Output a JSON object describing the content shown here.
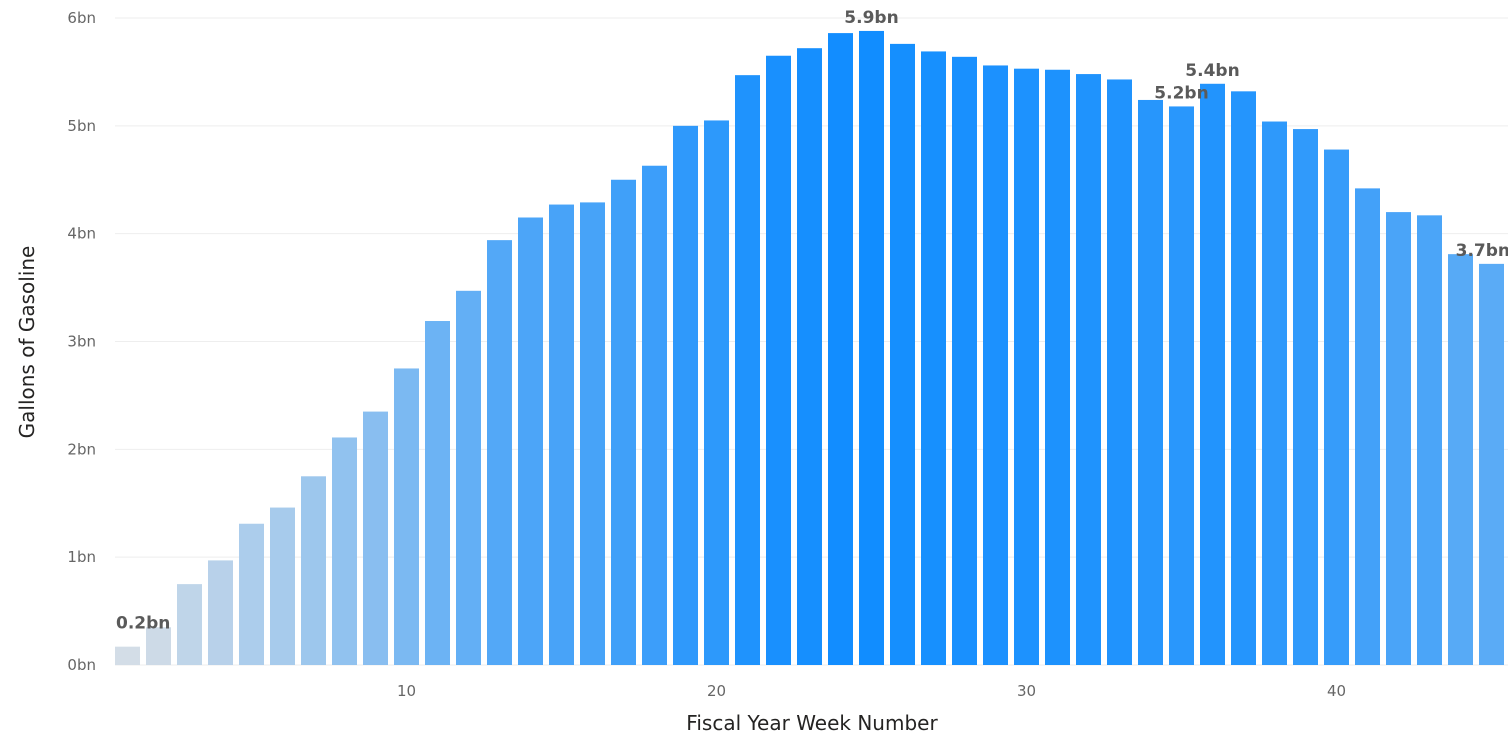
{
  "chart_data": {
    "type": "bar",
    "xlabel": "Fiscal Year Week Number",
    "ylabel": "Gallons of Gasoline",
    "x": [
      1,
      2,
      3,
      4,
      5,
      6,
      7,
      8,
      9,
      10,
      11,
      12,
      13,
      14,
      15,
      16,
      17,
      18,
      19,
      20,
      21,
      22,
      23,
      24,
      25,
      26,
      27,
      28,
      29,
      30,
      31,
      32,
      33,
      34,
      35,
      36,
      37,
      38,
      39,
      40,
      41,
      42,
      43,
      44,
      45
    ],
    "values": [
      0.17,
      0.35,
      0.75,
      0.97,
      1.31,
      1.46,
      1.75,
      2.11,
      2.35,
      2.75,
      3.19,
      3.47,
      3.94,
      4.15,
      4.27,
      4.29,
      4.5,
      4.63,
      5.0,
      5.05,
      5.47,
      5.65,
      5.72,
      5.86,
      5.88,
      5.76,
      5.69,
      5.64,
      5.56,
      5.53,
      5.52,
      5.48,
      5.43,
      5.24,
      5.18,
      5.39,
      5.32,
      5.04,
      4.97,
      4.78,
      4.42,
      4.2,
      4.17,
      3.81,
      3.72
    ],
    "x_ticks": [
      10,
      20,
      30,
      40
    ],
    "y_ticks": [
      "0bn",
      "1bn",
      "2bn",
      "3bn",
      "4bn",
      "5bn",
      "6bn"
    ],
    "ylim": [
      0,
      6
    ],
    "grid": true,
    "color_scale": {
      "low": "#d9dfe6",
      "high": "#118dff"
    },
    "data_labels": [
      {
        "x": 1,
        "text": "0.2bn"
      },
      {
        "x": 25,
        "text": "5.9bn"
      },
      {
        "x": 35,
        "text": "5.2bn"
      },
      {
        "x": 36,
        "text": "5.4bn"
      },
      {
        "x": 45,
        "text": "3.7bn"
      }
    ]
  }
}
